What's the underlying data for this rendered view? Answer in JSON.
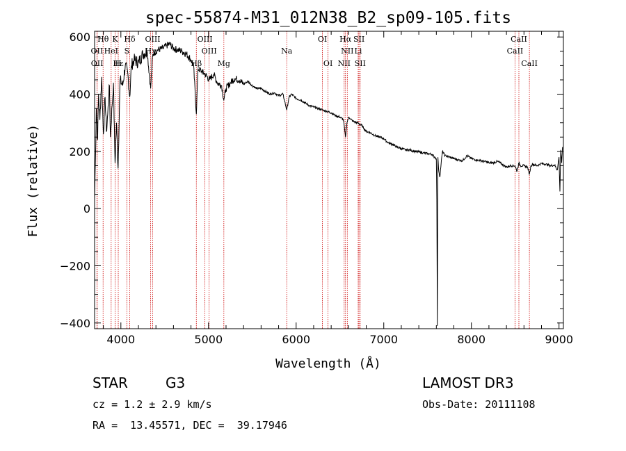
{
  "chart_data": {
    "type": "line",
    "title": "spec-55874-M31_012N38_B2_sp09-105.fits",
    "xlabel": "Wavelength (Å)",
    "ylabel": "Flux (relative)",
    "xlim": [
      3700,
      9050
    ],
    "ylim": [
      -420,
      620
    ],
    "xticks": [
      4000,
      5000,
      6000,
      7000,
      8000,
      9000
    ],
    "xtick_labels": [
      "4000",
      "5000",
      "6000",
      "7000",
      "8000",
      "9000"
    ],
    "yticks": [
      -400,
      -200,
      0,
      200,
      400,
      600
    ],
    "ytick_labels": [
      "−400",
      "−200",
      "0",
      "200",
      "400",
      "600"
    ],
    "series": [
      {
        "name": "flux",
        "x": [
          3700,
          3710,
          3720,
          3735,
          3745,
          3760,
          3780,
          3800,
          3820,
          3835,
          3850,
          3870,
          3880,
          3900,
          3915,
          3933,
          3950,
          3968,
          3990,
          4020,
          4050,
          4080,
          4101,
          4120,
          4150,
          4200,
          4250,
          4300,
          4340,
          4360,
          4380,
          4420,
          4480,
          4520,
          4560,
          4600,
          4650,
          4700,
          4750,
          4800,
          4830,
          4861,
          4880,
          4920,
          4960,
          5010,
          5060,
          5100,
          5150,
          5175,
          5200,
          5250,
          5300,
          5350,
          5400,
          5450,
          5500,
          5550,
          5600,
          5650,
          5700,
          5750,
          5800,
          5850,
          5893,
          5920,
          5950,
          6000,
          6050,
          6100,
          6150,
          6200,
          6250,
          6300,
          6350,
          6400,
          6450,
          6500,
          6540,
          6563,
          6580,
          6600,
          6650,
          6700,
          6750,
          6800,
          6850,
          6900,
          6950,
          7000,
          7050,
          7100,
          7150,
          7200,
          7250,
          7300,
          7350,
          7400,
          7450,
          7500,
          7550,
          7580,
          7600,
          7605,
          7612,
          7618,
          7625,
          7640,
          7655,
          7670,
          7700,
          7750,
          7800,
          7850,
          7900,
          7950,
          8000,
          8050,
          8100,
          8150,
          8200,
          8250,
          8300,
          8350,
          8400,
          8450,
          8498,
          8520,
          8542,
          8560,
          8600,
          8640,
          8662,
          8680,
          8700,
          8750,
          8800,
          8850,
          8900,
          8950,
          8980,
          9000,
          9010,
          9020,
          9030,
          9040
        ],
        "y": [
          30,
          180,
          350,
          240,
          400,
          310,
          460,
          260,
          390,
          270,
          330,
          430,
          250,
          360,
          440,
          160,
          300,
          140,
          450,
          430,
          500,
          470,
          390,
          500,
          520,
          510,
          540,
          550,
          420,
          530,
          545,
          555,
          560,
          570,
          575,
          560,
          555,
          550,
          540,
          520,
          500,
          330,
          490,
          480,
          470,
          450,
          470,
          440,
          430,
          380,
          420,
          440,
          455,
          450,
          435,
          445,
          430,
          420,
          420,
          410,
          400,
          405,
          395,
          400,
          345,
          390,
          400,
          385,
          380,
          370,
          360,
          355,
          350,
          345,
          340,
          335,
          325,
          320,
          310,
          250,
          300,
          320,
          305,
          300,
          290,
          270,
          265,
          255,
          250,
          245,
          230,
          225,
          215,
          210,
          205,
          205,
          200,
          198,
          195,
          192,
          190,
          180,
          175,
          30,
          -410,
          180,
          140,
          110,
          160,
          200,
          185,
          180,
          175,
          170,
          168,
          185,
          175,
          170,
          168,
          165,
          160,
          160,
          165,
          155,
          145,
          150,
          150,
          130,
          160,
          150,
          150,
          145,
          120,
          150,
          155,
          150,
          158,
          155,
          150,
          152,
          135,
          180,
          60,
          205,
          160,
          215
        ]
      }
    ],
    "lines": [
      {
        "label": "Hθ",
        "x": 3797,
        "row": 0
      },
      {
        "label": "K",
        "x": 3934,
        "row": 0
      },
      {
        "label": "Hδ",
        "x": 4101,
        "row": 0
      },
      {
        "label": "OIII",
        "x": 4363,
        "row": 0
      },
      {
        "label": "OIII",
        "x": 4959,
        "row": 0
      },
      {
        "label": "OI",
        "x": 6300,
        "row": 0
      },
      {
        "label": "Hα",
        "x": 6563,
        "row": 0
      },
      {
        "label": "SII",
        "x": 6717,
        "row": 0
      },
      {
        "label": "CaII",
        "x": 8542,
        "row": 0
      },
      {
        "label": "OII",
        "x": 3727,
        "row": 1
      },
      {
        "label": "HeI",
        "x": 3889,
        "row": 1
      },
      {
        "label": "S",
        "x": 4068,
        "row": 1
      },
      {
        "label": "Hγ",
        "x": 4340,
        "row": 1
      },
      {
        "label": "OIII",
        "x": 5007,
        "row": 1
      },
      {
        "label": "Na",
        "x": 5893,
        "row": 1
      },
      {
        "label": "NII",
        "x": 6584,
        "row": 1
      },
      {
        "label": "Li",
        "x": 6708,
        "row": 1
      },
      {
        "label": "CaII",
        "x": 8498,
        "row": 1
      },
      {
        "label": "OII",
        "x": 3729,
        "row": 2
      },
      {
        "label": "Hε",
        "x": 3970,
        "row": 2
      },
      {
        "label": "H",
        "x": 3968,
        "row": 2
      },
      {
        "label": "Hβ",
        "x": 4861,
        "row": 2
      },
      {
        "label": "Mg",
        "x": 5175,
        "row": 2
      },
      {
        "label": "OI",
        "x": 6364,
        "row": 2
      },
      {
        "label": "NII",
        "x": 6548,
        "row": 2
      },
      {
        "label": "SII",
        "x": 6731,
        "row": 2
      },
      {
        "label": "CaII",
        "x": 8662,
        "row": 2
      }
    ]
  },
  "info": {
    "class": "STAR",
    "subclass": "G3",
    "cz": "cz = 1.2 ± 2.9 km/s",
    "radec": "RA =  13.45571, DEC =  39.17946",
    "survey": "LAMOST DR3",
    "obsdate": "Obs-Date: 20111108"
  },
  "colors": {
    "axis": "#000000",
    "spectrum": "#000000",
    "line_marker": "#cc0000"
  }
}
